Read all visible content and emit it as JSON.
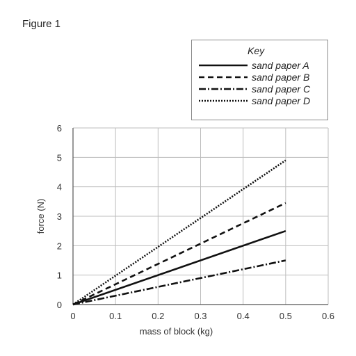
{
  "figure_label": "Figure 1",
  "chart_data": {
    "type": "line",
    "xlabel": "mass of block (kg)",
    "ylabel": "force (N)",
    "xlim": [
      0,
      0.6
    ],
    "ylim": [
      0,
      6
    ],
    "xticks": [
      "0",
      "0.1",
      "0.2",
      "0.3",
      "0.4",
      "0.5",
      "0.6"
    ],
    "yticks": [
      "0",
      "1",
      "2",
      "3",
      "4",
      "5",
      "6"
    ],
    "grid": true,
    "legend": {
      "title": "Key",
      "placement": "top-right"
    },
    "series": [
      {
        "name": "sand paper A",
        "style": "solid",
        "x": [
          0,
          0.5
        ],
        "y": [
          0,
          2.5
        ]
      },
      {
        "name": "sand paper B",
        "style": "dashed",
        "x": [
          0,
          0.5
        ],
        "y": [
          0,
          3.45
        ]
      },
      {
        "name": "sand paper C",
        "style": "dashdot",
        "x": [
          0,
          0.5
        ],
        "y": [
          0,
          1.5
        ]
      },
      {
        "name": "sand paper D",
        "style": "dotted",
        "x": [
          0,
          0.5
        ],
        "y": [
          0,
          4.9
        ]
      }
    ]
  }
}
